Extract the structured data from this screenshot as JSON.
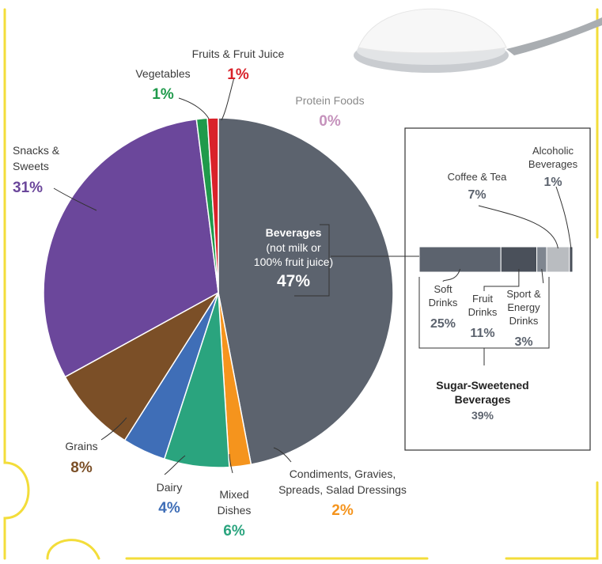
{
  "colors": {
    "border": "#f3dd3a",
    "leader": "#333333",
    "beverages": "#5c636e",
    "condiments": "#f5941d",
    "mixed": "#2aa47e",
    "dairy": "#3f6eb7",
    "grains": "#7b4f27",
    "snacks": "#6b479b",
    "vegetables": "#1f9a4b",
    "fruits": "#d9222a",
    "protein": "#c592bc"
  },
  "chart_data": {
    "type": "pie",
    "slices": [
      {
        "key": "beverages",
        "value": 47,
        "pct_label": "47%"
      },
      {
        "key": "condiments",
        "value": 2,
        "pct_label": "2%"
      },
      {
        "key": "mixed",
        "value": 6,
        "pct_label": "6%"
      },
      {
        "key": "dairy",
        "value": 4,
        "pct_label": "4%"
      },
      {
        "key": "grains",
        "value": 8,
        "pct_label": "8%"
      },
      {
        "key": "snacks",
        "value": 31,
        "pct_label": "31%"
      },
      {
        "key": "vegetables",
        "value": 1,
        "pct_label": "1%"
      },
      {
        "key": "fruits",
        "value": 1,
        "pct_label": "1%"
      },
      {
        "key": "protein",
        "value": 0,
        "pct_label": "0%"
      }
    ],
    "labels": {
      "fruits": [
        "Fruits & Fruit Juice"
      ],
      "vegetables": [
        "Vegetables"
      ],
      "protein": [
        "Protein Foods"
      ],
      "snacks": [
        "Snacks &",
        "Sweets"
      ],
      "grains": [
        "Grains"
      ],
      "dairy": [
        "Dairy"
      ],
      "mixed": [
        "Mixed",
        "Dishes"
      ],
      "condiments": [
        "Condiments, Gravies,",
        "Spreads, Salad Dressings"
      ],
      "beverages": [
        "Beverages",
        "(not milk or",
        "100% fruit juice)"
      ]
    },
    "breakdown": {
      "type": "bar",
      "title": [
        "Sugar-Sweetened",
        "Beverages"
      ],
      "total_label": "39%",
      "segments": [
        {
          "lines": [
            "Soft",
            "Drinks"
          ],
          "value": 25,
          "pct_label": "25%",
          "color": "#5c636e"
        },
        {
          "lines": [
            "Fruit",
            "Drinks"
          ],
          "value": 11,
          "pct_label": "11%",
          "color": "#4a505a"
        },
        {
          "lines": [
            "Sport &",
            "Energy",
            "Drinks"
          ],
          "value": 3,
          "pct_label": "3%",
          "color": "#7f8690"
        },
        {
          "lines": [
            "Coffee & Tea"
          ],
          "value": 7,
          "pct_label": "7%",
          "color": "#b9bcc0"
        },
        {
          "lines": [
            "Alcoholic",
            "Beverages"
          ],
          "value": 1,
          "pct_label": "1%",
          "color": "#4a505a"
        }
      ]
    }
  }
}
